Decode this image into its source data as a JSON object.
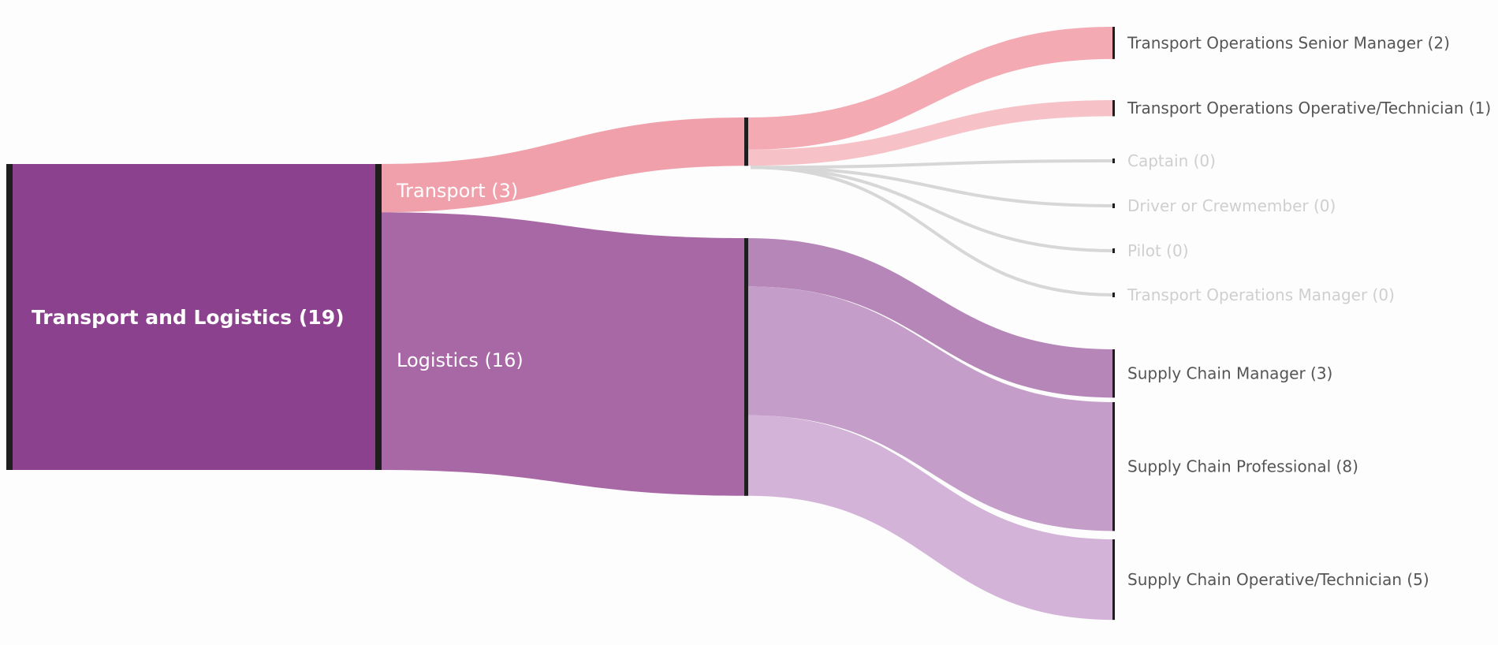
{
  "chart_data": {
    "type": "sankey",
    "root": {
      "label": "Transport and Logistics (19)",
      "value": 19,
      "color": "#8b418e"
    },
    "groups": [
      {
        "label": "Transport (3)",
        "value": 3,
        "color": "#f0a0aa",
        "children": [
          {
            "label": "Transport Operations Senior Manager (2)",
            "value": 2,
            "color": "#f3aab3"
          },
          {
            "label": "Transport Operations Operative/Technician (1)",
            "value": 1,
            "color": "#f6c1c7"
          },
          {
            "label": "Captain (0)",
            "value": 0,
            "color": "#d7d7d7"
          },
          {
            "label": "Driver or Crewmember (0)",
            "value": 0,
            "color": "#d7d7d7"
          },
          {
            "label": "Pilot (0)",
            "value": 0,
            "color": "#d7d7d7"
          },
          {
            "label": "Transport Operations Manager (0)",
            "value": 0,
            "color": "#d7d7d7"
          }
        ]
      },
      {
        "label": "Logistics (16)",
        "value": 16,
        "color": "#a868a6",
        "children": [
          {
            "label": "Supply Chain Manager (3)",
            "value": 3,
            "color": "#b586b7"
          },
          {
            "label": "Supply Chain Professional (8)",
            "value": 8,
            "color": "#c49dc9"
          },
          {
            "label": "Supply Chain Operative/Technician (5)",
            "value": 5,
            "color": "#d3b3d8"
          }
        ]
      }
    ],
    "node_bar_color": "#1e1e1e"
  }
}
